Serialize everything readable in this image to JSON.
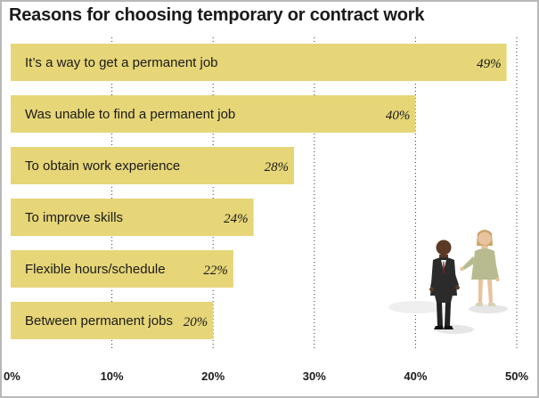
{
  "title": "Reasons for choosing temporary or contract work",
  "colors": {
    "bar": "#e6d678",
    "grid": "#333333",
    "frame": "#b9b9b9",
    "text": "#1a1a1a"
  },
  "chart_data": {
    "type": "bar",
    "orientation": "horizontal",
    "title": "Reasons for choosing temporary or contract work",
    "categories": [
      "It’s a way to get a permanent job",
      "Was unable to find a permanent job",
      "To obtain work experience",
      "To improve skills",
      "Flexible hours/schedule",
      "Between permanent jobs"
    ],
    "values": [
      49,
      40,
      28,
      24,
      22,
      20
    ],
    "value_labels": [
      "49%",
      "40%",
      "28%",
      "24%",
      "22%",
      "20%"
    ],
    "xlim": [
      0,
      50
    ],
    "ticks": [
      0,
      10,
      20,
      30,
      40,
      50
    ],
    "tick_labels": [
      "0%",
      "10%",
      "20%",
      "30%",
      "40%",
      "50%"
    ],
    "grid": "dotted vertical",
    "legend": "none"
  },
  "illustration": {
    "icon": "two-business-people-icon",
    "description_label": "Illustration (generated)"
  }
}
